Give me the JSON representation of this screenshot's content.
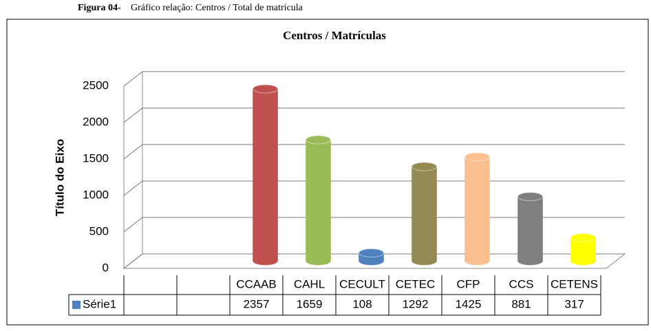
{
  "caption_label": "Figura 04-",
  "caption": "Gráfico relação: Centros / Total de matrícula",
  "chart_data": {
    "type": "bar",
    "title": "Centros / Matrículas",
    "y_label": "Título do Eixo",
    "categories": [
      null,
      null,
      "CCAAB",
      "CAHL",
      "CECULT",
      "CETEC",
      "CFP",
      "CCS",
      "CETENS"
    ],
    "series": [
      {
        "name": "Série1",
        "color": "#4f81bd",
        "colors": [
          null,
          null,
          "#c0504d",
          "#9bbb59",
          "#4f81bd",
          "#948a54",
          "#fabf8f",
          "#7f7f7f",
          "#ffff00"
        ],
        "values": [
          null,
          null,
          2357,
          1659,
          108,
          1292,
          1425,
          881,
          317
        ]
      }
    ],
    "ylim": [
      0,
      2500
    ],
    "yticks": [
      0,
      500,
      1000,
      1500,
      2000,
      2500
    ],
    "grid": true,
    "data_table": true
  }
}
